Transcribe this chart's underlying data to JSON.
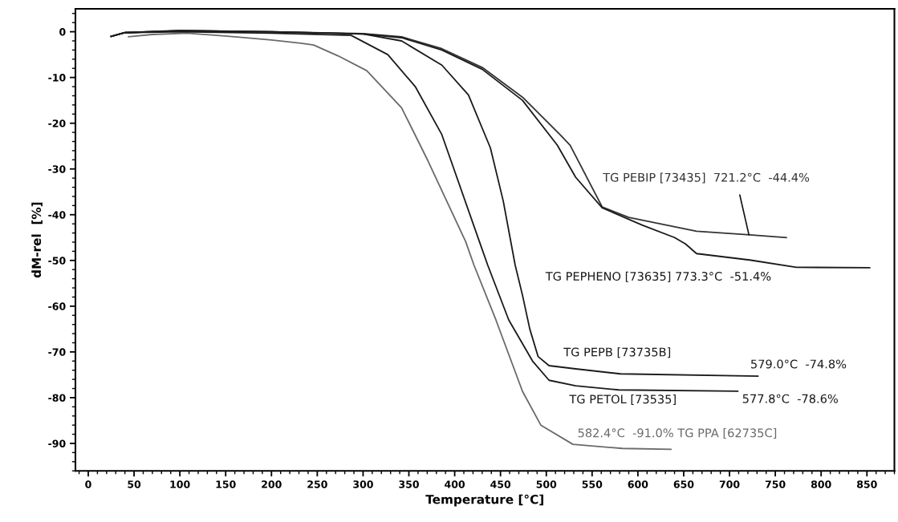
{
  "chart_data": {
    "type": "line",
    "xlabel": "Temperature [°C]",
    "ylabel": "dM-rel  [%]",
    "xlim": [
      -14,
      880
    ],
    "ylim": [
      -96,
      5
    ],
    "xticks": [
      0,
      50,
      100,
      150,
      200,
      250,
      300,
      350,
      400,
      450,
      500,
      550,
      600,
      650,
      700,
      750,
      800,
      850
    ],
    "yticks": [
      0,
      -10,
      -20,
      -30,
      -40,
      -50,
      -60,
      -70,
      -80,
      -90
    ],
    "grid": false,
    "legend": false,
    "marker": "none",
    "line_style": "solid",
    "series": [
      {
        "color": "#6a6a6a",
        "x": [
          44,
          70,
          108,
          160,
          200,
          232,
          246,
          273,
          304,
          342,
          371,
          412,
          421,
          445,
          474,
          494,
          529,
          583,
          636
        ],
        "values": [
          -1.1,
          -0.6,
          -0.3,
          -1.1,
          -1.8,
          -2.5,
          -2.9,
          -5.3,
          -8.5,
          -16.6,
          -28.3,
          -45.9,
          -51,
          -63,
          -78.6,
          -86,
          -90.2,
          -91.1,
          -91.3
        ]
      },
      {
        "color": "#1a1a1a",
        "x": [
          25,
          40,
          100,
          200,
          287,
          327,
          357,
          386,
          427,
          436,
          459,
          485,
          503,
          532,
          579,
          709
        ],
        "values": [
          -1,
          -0.2,
          0,
          -0.3,
          -0.8,
          -5,
          -12,
          -22.5,
          -45.9,
          -51,
          -63,
          -72,
          -76.2,
          -77.4,
          -78.3,
          -78.6
        ]
      },
      {
        "color": "#1a1a1a",
        "x": [
          25,
          40,
          100,
          200,
          300,
          342,
          386,
          415,
          439,
          453,
          466,
          474,
          482,
          491,
          503,
          532,
          581,
          731
        ],
        "values": [
          -1,
          -0.2,
          0.2,
          0,
          -0.5,
          -2,
          -7.3,
          -13.8,
          -25.4,
          -37,
          -51,
          -57.6,
          -65,
          -71,
          -73,
          -73.7,
          -74.8,
          -75.3
        ]
      },
      {
        "color": "#333333",
        "x": [
          25,
          40,
          100,
          200,
          300,
          342,
          386,
          430,
          474,
          515,
          526,
          561,
          590,
          664,
          722,
          762
        ],
        "values": [
          -1,
          -0.2,
          0.3,
          0,
          -0.4,
          -1.1,
          -3.7,
          -7.8,
          -14.3,
          -22.5,
          -24.8,
          -38.3,
          -40.6,
          -43.6,
          -44.4,
          -45
        ]
      },
      {
        "color": "#1a1a1a",
        "x": [
          25,
          40,
          100,
          200,
          300,
          342,
          386,
          430,
          474,
          512,
          532,
          561,
          605,
          640,
          652,
          664,
          722,
          773,
          853
        ],
        "values": [
          -1,
          -0.2,
          0.2,
          0,
          -0.5,
          -1.3,
          -4,
          -8.2,
          -15,
          -24.8,
          -31.8,
          -38.5,
          -42.3,
          -45,
          -46.4,
          -48.5,
          -49.9,
          -51.5,
          -51.6
        ]
      }
    ],
    "annotations": [
      {
        "text": "TG PEBIP [73435]  721.2°C  -44.4%",
        "x": 721.2,
        "y": -44.4
      },
      "TG PEPHENO [73635] 773.3°C  -51.4%",
      "TG PEPB [73735B]",
      "579.0°C  -74.8%",
      "TG PETOL [73535]",
      "577.8°C  -78.6%",
      "582.4°C  -91.0% TG PPA [62735C]"
    ]
  }
}
